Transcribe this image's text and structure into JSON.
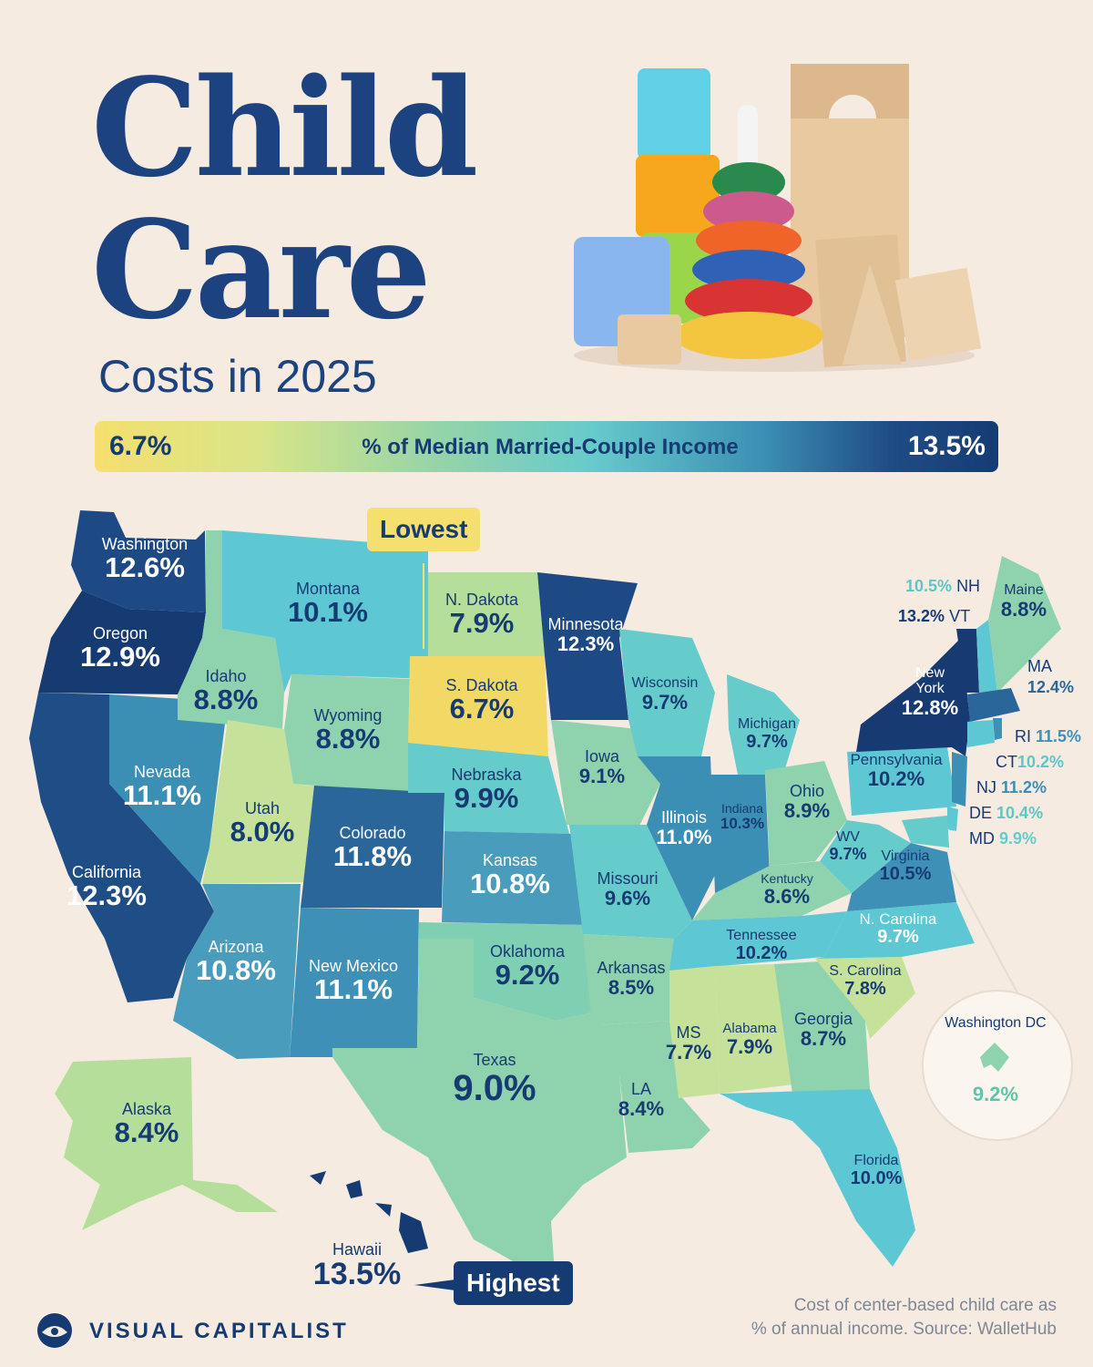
{
  "title": {
    "line1": "Child",
    "line2": "Care",
    "subtitle": "Costs in 2025"
  },
  "legend": {
    "min": "6.7%",
    "label": "% of Median Married-Couple Income",
    "max": "13.5%",
    "colors": [
      "#f5df6e",
      "#95d4a8",
      "#66cbcb",
      "#3b8fb4",
      "#163b73"
    ]
  },
  "callouts": {
    "lowest": "Lowest",
    "highest": "Highest"
  },
  "states": {
    "washington": {
      "name": "Washington",
      "value": "12.6%"
    },
    "oregon": {
      "name": "Oregon",
      "value": "12.9%"
    },
    "california": {
      "name": "California",
      "value": "12.3%"
    },
    "nevada": {
      "name": "Nevada",
      "value": "11.1%"
    },
    "idaho": {
      "name": "Idaho",
      "value": "8.8%"
    },
    "montana": {
      "name": "Montana",
      "value": "10.1%"
    },
    "wyoming": {
      "name": "Wyoming",
      "value": "8.8%"
    },
    "utah": {
      "name": "Utah",
      "value": "8.0%"
    },
    "arizona": {
      "name": "Arizona",
      "value": "10.8%"
    },
    "colorado": {
      "name": "Colorado",
      "value": "11.8%"
    },
    "new_mexico": {
      "name": "New Mexico",
      "value": "11.1%"
    },
    "north_dakota": {
      "name": "N. Dakota",
      "value": "7.9%"
    },
    "south_dakota": {
      "name": "S. Dakota",
      "value": "6.7%"
    },
    "nebraska": {
      "name": "Nebraska",
      "value": "9.9%"
    },
    "kansas": {
      "name": "Kansas",
      "value": "10.8%"
    },
    "oklahoma": {
      "name": "Oklahoma",
      "value": "9.2%"
    },
    "texas": {
      "name": "Texas",
      "value": "9.0%"
    },
    "minnesota": {
      "name": "Minnesota",
      "value": "12.3%"
    },
    "iowa": {
      "name": "Iowa",
      "value": "9.1%"
    },
    "missouri": {
      "name": "Missouri",
      "value": "9.6%"
    },
    "arkansas": {
      "name": "Arkansas",
      "value": "8.5%"
    },
    "louisiana": {
      "name": "LA",
      "value": "8.4%"
    },
    "wisconsin": {
      "name": "Wisconsin",
      "value": "9.7%"
    },
    "illinois": {
      "name": "Illinois",
      "value": "11.0%"
    },
    "michigan": {
      "name": "Michigan",
      "value": "9.7%"
    },
    "indiana": {
      "name": "Indiana",
      "value": "10.3%"
    },
    "ohio": {
      "name": "Ohio",
      "value": "8.9%"
    },
    "kentucky": {
      "name": "Kentucky",
      "value": "8.6%"
    },
    "tennessee": {
      "name": "Tennessee",
      "value": "10.2%"
    },
    "mississippi": {
      "name": "MS",
      "value": "7.7%"
    },
    "alabama": {
      "name": "Alabama",
      "value": "7.9%"
    },
    "georgia": {
      "name": "Georgia",
      "value": "8.7%"
    },
    "florida": {
      "name": "Florida",
      "value": "10.0%"
    },
    "south_carolina": {
      "name": "S. Carolina",
      "value": "7.8%"
    },
    "north_carolina": {
      "name": "N. Carolina",
      "value": "9.7%"
    },
    "virginia": {
      "name": "Virginia",
      "value": "10.5%"
    },
    "west_virginia": {
      "name": "WV",
      "value": "9.7%"
    },
    "pennsylvania": {
      "name": "Pennsylvania",
      "value": "10.2%"
    },
    "new_york": {
      "name": "New\nYork",
      "value": "12.8%"
    },
    "maine": {
      "name": "Maine",
      "value": "8.8%"
    },
    "alaska": {
      "name": "Alaska",
      "value": "8.4%"
    },
    "hawaii": {
      "name": "Hawaii",
      "value": "13.5%"
    }
  },
  "northeast": {
    "nh": {
      "abbr": "NH",
      "value": "10.5%"
    },
    "vt": {
      "abbr": "VT",
      "value": "13.2%"
    },
    "ma": {
      "abbr": "MA",
      "value": "12.4%"
    },
    "ri": {
      "abbr": "RI",
      "value": "11.5%"
    },
    "ct": {
      "abbr": "CT",
      "value": "10.2%"
    },
    "nj": {
      "abbr": "NJ",
      "value": "11.2%"
    },
    "de": {
      "abbr": "DE",
      "value": "10.4%"
    },
    "md": {
      "abbr": "MD",
      "value": "9.9%"
    }
  },
  "dc": {
    "name": "Washington DC",
    "value": "9.2%"
  },
  "brand": "VISUAL CAPITALIST",
  "footer": {
    "line1": "Cost of center-based child care as",
    "line2": "% of annual income. Source: WalletHub"
  }
}
